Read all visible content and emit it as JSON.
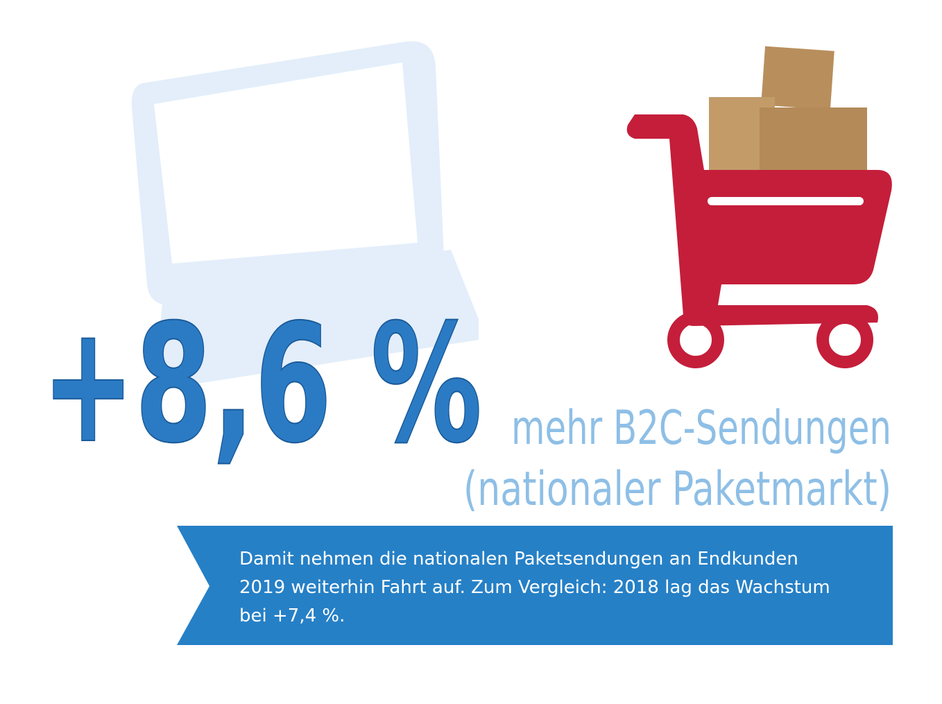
{
  "headline": {
    "value": "+8,6 %",
    "subtitle": [
      "mehr B2C-Sendungen",
      "(nationaler Paketmarkt)"
    ]
  },
  "banner": {
    "lines": [
      "Damit nehmen die nationalen Paketsendungen an Endkunden",
      "2019 weiterhin Fahrt auf. Zum Vergleich: 2018 lag das Wachstum",
      "bei +7,4 %."
    ]
  }
}
